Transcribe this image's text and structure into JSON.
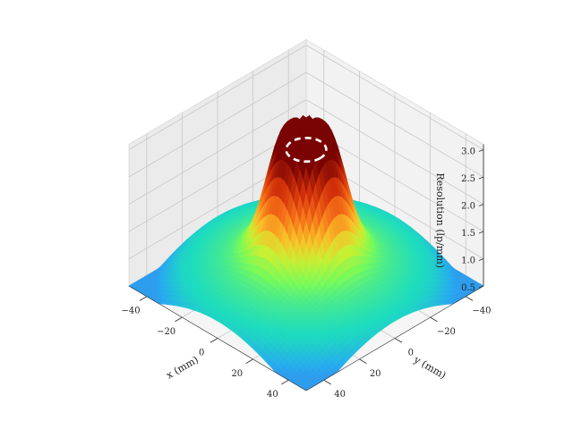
{
  "chart_data": {
    "type": "surface3d",
    "title": "",
    "xlabel": "x (mm)",
    "ylabel": "y (mm)",
    "zlabel": "Resolution (lp/mm)",
    "xlim": [
      -50,
      50
    ],
    "ylim": [
      -50,
      50
    ],
    "zlim": [
      0.5,
      3.1
    ],
    "x_ticks": [
      -40,
      -20,
      0,
      20,
      40
    ],
    "y_ticks": [
      -40,
      -20,
      0,
      20,
      40
    ],
    "z_ticks": [
      "0.5",
      "1.0",
      "1.5",
      "2.0",
      "2.5",
      "3.0"
    ],
    "x_tick_labels": [
      "−40",
      "−20",
      "0",
      "20",
      "40"
    ],
    "y_tick_labels": [
      "−40",
      "−20",
      "0",
      "20",
      "40"
    ],
    "surface": {
      "peak_value": 3.0,
      "peak_plateau_radius_mm": 8,
      "edge_value": 1.0,
      "corner_value": 0.5,
      "colormap": "turbo"
    },
    "annotation": {
      "type": "dashed-circle",
      "center": [
        0,
        0
      ],
      "radius_mm": 8,
      "z": 3.0,
      "color": "#ffffff"
    },
    "grid": true
  }
}
